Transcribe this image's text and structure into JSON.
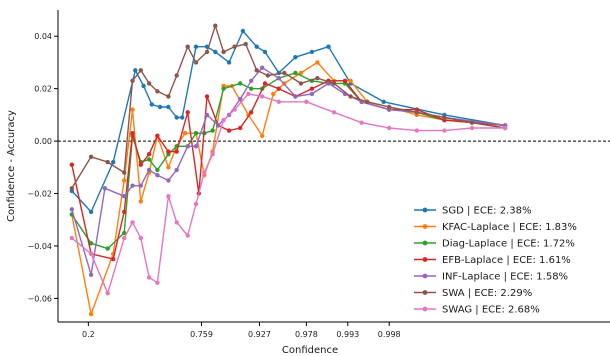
{
  "chart_data": {
    "type": "line",
    "title": "",
    "xlabel": "Confidence",
    "ylabel": "Confidence - Accuracy",
    "x_tick_labels": [
      "0.2",
      "0.759",
      "0.927",
      "0.978",
      "0.993",
      "0.998"
    ],
    "y_ticks": [
      -0.06,
      -0.04,
      -0.02,
      0.0,
      0.02,
      0.04
    ],
    "y_tick_labels": [
      "−0.06",
      "−0.04",
      "−0.02",
      "0.00",
      "0.02",
      "0.04"
    ],
    "ylim": [
      -0.069,
      0.05
    ],
    "xlim": [
      0,
      1
    ],
    "reference_line": 0.0,
    "grid": false,
    "legend_position": "lower-right",
    "series": [
      {
        "name": "SGD | ECE: 2.38%",
        "color": "#1f77b4",
        "x": [
          0.025,
          0.06,
          0.1,
          0.14,
          0.155,
          0.17,
          0.185,
          0.2,
          0.215,
          0.225,
          0.25,
          0.27,
          0.285,
          0.31,
          0.335,
          0.36,
          0.375,
          0.4,
          0.43,
          0.46,
          0.49,
          0.53,
          0.59,
          0.7,
          0.81
        ],
        "y": [
          -0.019,
          -0.027,
          -0.008,
          0.027,
          0.021,
          0.014,
          0.013,
          0.013,
          0.009,
          0.009,
          0.036,
          0.036,
          0.034,
          0.03,
          0.042,
          0.036,
          0.034,
          0.026,
          0.032,
          0.034,
          0.036,
          0.022,
          0.015,
          0.01,
          0.006
        ]
      },
      {
        "name": "KFAC-Laplace | ECE: 1.83%",
        "color": "#ff7f0e",
        "x": [
          0.025,
          0.06,
          0.1,
          0.12,
          0.135,
          0.15,
          0.165,
          0.18,
          0.2,
          0.215,
          0.23,
          0.25,
          0.265,
          0.28,
          0.3,
          0.315,
          0.345,
          0.37,
          0.39,
          0.41,
          0.44,
          0.47,
          0.5,
          0.53,
          0.56,
          0.6,
          0.65,
          0.7,
          0.75,
          0.81
        ],
        "y": [
          -0.028,
          -0.066,
          -0.043,
          -0.015,
          0.012,
          -0.023,
          -0.012,
          0.002,
          -0.01,
          -0.002,
          0.003,
          0.003,
          -0.013,
          -0.004,
          0.021,
          0.021,
          0.01,
          0.002,
          0.018,
          0.022,
          0.026,
          0.03,
          0.023,
          0.023,
          0.015,
          0.013,
          0.01,
          0.008,
          0.007,
          0.005
        ]
      },
      {
        "name": "Diag-Laplace | ECE: 1.72%",
        "color": "#2ca02c",
        "x": [
          0.025,
          0.06,
          0.09,
          0.12,
          0.135,
          0.15,
          0.165,
          0.18,
          0.2,
          0.215,
          0.235,
          0.25,
          0.265,
          0.28,
          0.3,
          0.33,
          0.35,
          0.37,
          0.4,
          0.43,
          0.46,
          0.49,
          0.52,
          0.55,
          0.6,
          0.65,
          0.7,
          0.81
        ],
        "y": [
          -0.028,
          -0.039,
          -0.041,
          -0.035,
          0.002,
          -0.008,
          -0.007,
          -0.011,
          -0.005,
          -0.002,
          -0.002,
          0.003,
          0.003,
          0.004,
          0.02,
          0.022,
          0.02,
          0.02,
          0.024,
          0.026,
          0.023,
          0.022,
          0.022,
          0.015,
          0.012,
          0.011,
          0.008,
          0.006
        ]
      },
      {
        "name": "EFB-Laplace | ECE: 1.61%",
        "color": "#d62728",
        "x": [
          0.025,
          0.06,
          0.1,
          0.12,
          0.135,
          0.15,
          0.165,
          0.18,
          0.2,
          0.215,
          0.235,
          0.255,
          0.27,
          0.29,
          0.31,
          0.33,
          0.35,
          0.375,
          0.4,
          0.43,
          0.46,
          0.49,
          0.52,
          0.55,
          0.6,
          0.65,
          0.7,
          0.81
        ],
        "y": [
          -0.009,
          -0.043,
          -0.045,
          -0.027,
          0.003,
          -0.009,
          -0.005,
          0.002,
          -0.004,
          -0.004,
          0.011,
          -0.02,
          0.017,
          0.006,
          0.004,
          0.005,
          0.011,
          0.022,
          0.02,
          0.017,
          0.02,
          0.023,
          0.023,
          0.015,
          0.012,
          0.012,
          0.008,
          0.006
        ]
      },
      {
        "name": "INF-Laplace | ECE: 1.58%",
        "color": "#9467bd",
        "x": [
          0.025,
          0.06,
          0.085,
          0.12,
          0.135,
          0.15,
          0.165,
          0.18,
          0.2,
          0.215,
          0.235,
          0.25,
          0.27,
          0.29,
          0.31,
          0.33,
          0.35,
          0.37,
          0.4,
          0.43,
          0.46,
          0.49,
          0.52,
          0.55,
          0.6,
          0.65,
          0.7,
          0.81
        ],
        "y": [
          -0.026,
          -0.051,
          -0.018,
          -0.021,
          -0.017,
          -0.017,
          -0.011,
          -0.013,
          -0.015,
          -0.011,
          -0.002,
          -0.002,
          0.01,
          0.006,
          0.01,
          0.016,
          0.023,
          0.028,
          0.024,
          0.017,
          0.018,
          0.022,
          0.018,
          0.015,
          0.012,
          0.011,
          0.009,
          0.006
        ]
      },
      {
        "name": "SWA | ECE: 2.29%",
        "color": "#8c564b",
        "x": [
          0.025,
          0.06,
          0.09,
          0.12,
          0.135,
          0.15,
          0.165,
          0.18,
          0.2,
          0.215,
          0.235,
          0.25,
          0.27,
          0.285,
          0.3,
          0.32,
          0.34,
          0.36,
          0.38,
          0.41,
          0.44,
          0.47,
          0.5,
          0.53,
          0.56,
          0.6,
          0.65,
          0.7,
          0.75,
          0.81
        ],
        "y": [
          -0.018,
          -0.006,
          -0.008,
          -0.012,
          0.023,
          0.027,
          0.022,
          0.019,
          0.017,
          0.025,
          0.036,
          0.03,
          0.034,
          0.044,
          0.034,
          0.036,
          0.037,
          0.027,
          0.025,
          0.026,
          0.022,
          0.024,
          0.022,
          0.017,
          0.015,
          0.013,
          0.011,
          0.009,
          0.007,
          0.005
        ]
      },
      {
        "name": "SWAG | ECE: 2.68%",
        "color": "#e377c2",
        "x": [
          0.025,
          0.06,
          0.09,
          0.12,
          0.135,
          0.15,
          0.165,
          0.18,
          0.2,
          0.215,
          0.235,
          0.25,
          0.265,
          0.28,
          0.3,
          0.32,
          0.345,
          0.37,
          0.4,
          0.45,
          0.5,
          0.55,
          0.6,
          0.65,
          0.7,
          0.75,
          0.81
        ],
        "y": [
          -0.037,
          -0.043,
          -0.058,
          -0.037,
          -0.031,
          -0.037,
          -0.052,
          -0.054,
          -0.021,
          -0.031,
          -0.036,
          -0.024,
          -0.012,
          -0.005,
          0.008,
          0.012,
          0.018,
          0.017,
          0.015,
          0.015,
          0.011,
          0.007,
          0.005,
          0.004,
          0.004,
          0.005,
          0.005
        ]
      }
    ]
  }
}
